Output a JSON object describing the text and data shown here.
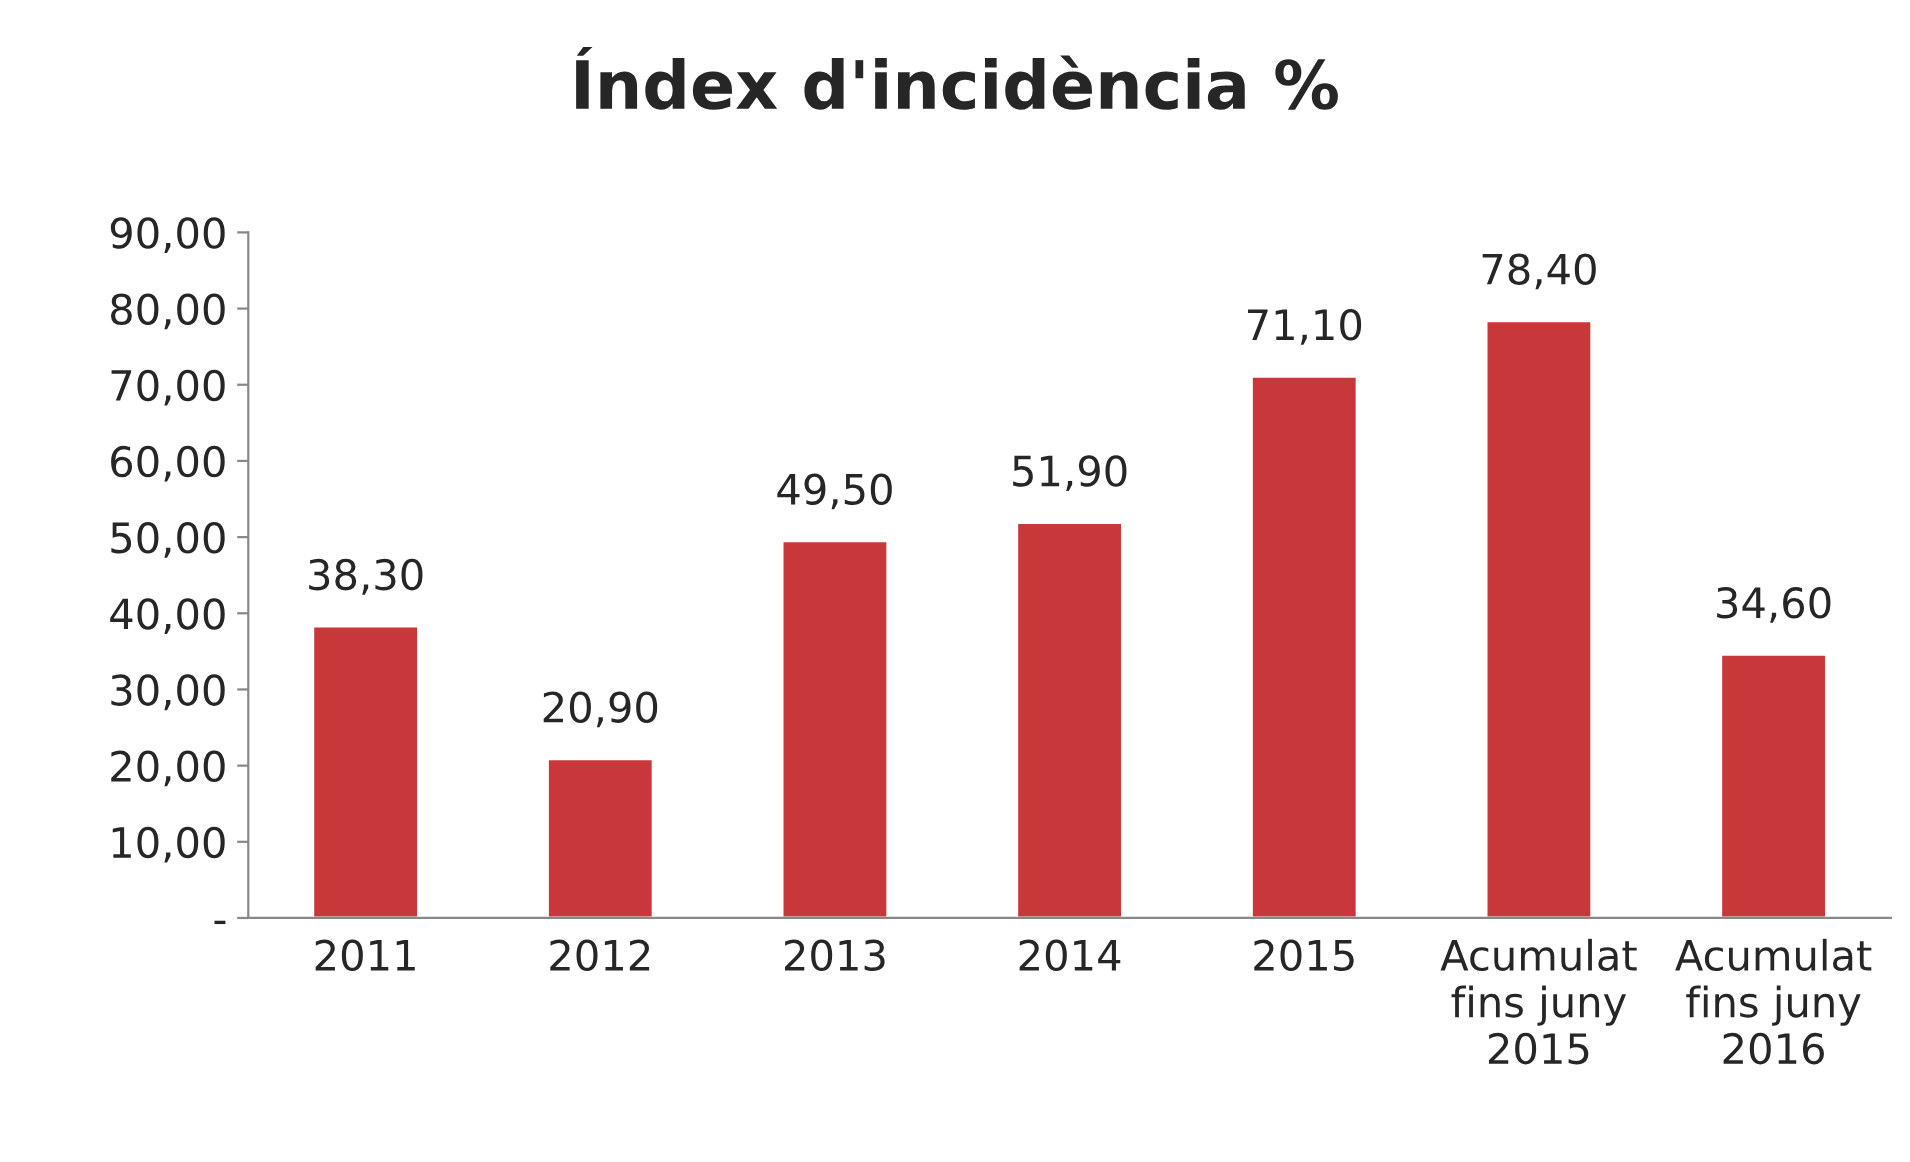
{
  "chart_data": {
    "type": "bar",
    "title": "Índex d'incidència %",
    "categories": [
      "2011",
      "2012",
      "2013",
      "2014",
      "2015",
      "Acumulat\nfins juny\n2015",
      "Acumulat\nfins juny\n2016"
    ],
    "values": [
      38.3,
      20.9,
      49.5,
      51.9,
      71.1,
      78.4,
      34.6
    ],
    "value_labels": [
      "38,30",
      "20,90",
      "49,50",
      "51,90",
      "71,10",
      "78,40",
      "34,60"
    ],
    "color": "#c8373a",
    "ylim": [
      0,
      90
    ],
    "yticks": [
      {
        "value": 0,
        "label": "-"
      },
      {
        "value": 10,
        "label": "10,00"
      },
      {
        "value": 20,
        "label": "20,00"
      },
      {
        "value": 30,
        "label": "30,00"
      },
      {
        "value": 40,
        "label": "40,00"
      },
      {
        "value": 50,
        "label": "50,00"
      },
      {
        "value": 60,
        "label": "60,00"
      },
      {
        "value": 70,
        "label": "70,00"
      },
      {
        "value": 80,
        "label": "80,00"
      },
      {
        "value": 90,
        "label": "90,00"
      }
    ],
    "grid": false,
    "legend": false
  }
}
